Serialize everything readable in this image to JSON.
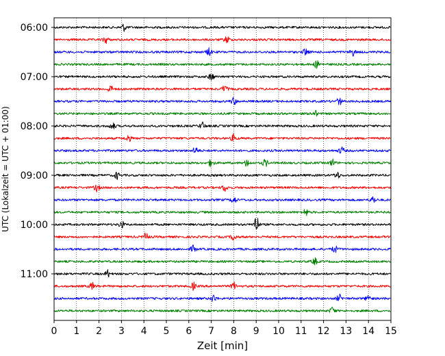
{
  "chart_data": {
    "type": "line",
    "xlabel": "Zeit  [min]",
    "ylabel": "UTC (Lokalzeit = UTC + 01:00)",
    "xlim": [
      0,
      15
    ],
    "x_ticks": [
      "0",
      "1",
      "2",
      "3",
      "4",
      "5",
      "6",
      "7",
      "8",
      "9",
      "10",
      "11",
      "12",
      "13",
      "14",
      "15"
    ],
    "y_ticks": [
      "06:00",
      "07:00",
      "08:00",
      "09:00",
      "10:00",
      "11:00"
    ],
    "grid": "vertical dotted",
    "colors": [
      "#000000",
      "#ff0000",
      "#0000ff",
      "#008000"
    ],
    "traces": [
      {
        "start": "06:00",
        "color": "#000000",
        "events": [
          3.1
        ]
      },
      {
        "start": "06:15",
        "color": "#ff0000",
        "events": [
          2.3,
          7.7
        ]
      },
      {
        "start": "06:30",
        "color": "#0000ff",
        "events": [
          6.9,
          11.2,
          13.3
        ]
      },
      {
        "start": "06:45",
        "color": "#008000",
        "events": [
          11.7
        ]
      },
      {
        "start": "07:00",
        "color": "#000000",
        "events": [
          7.0
        ]
      },
      {
        "start": "07:15",
        "color": "#ff0000",
        "events": [
          2.5,
          7.6
        ]
      },
      {
        "start": "07:30",
        "color": "#0000ff",
        "events": [
          8.0,
          12.7
        ]
      },
      {
        "start": "07:45",
        "color": "#008000",
        "events": [
          11.6
        ]
      },
      {
        "start": "08:00",
        "color": "#000000",
        "events": [
          2.6,
          6.6
        ]
      },
      {
        "start": "08:15",
        "color": "#ff0000",
        "events": [
          3.3,
          8.0
        ]
      },
      {
        "start": "08:30",
        "color": "#0000ff",
        "events": [
          6.3,
          12.8
        ]
      },
      {
        "start": "08:45",
        "color": "#008000",
        "events": [
          7.0,
          8.6,
          9.4,
          12.4
        ]
      },
      {
        "start": "09:00",
        "color": "#000000",
        "events": [
          2.8,
          12.6
        ]
      },
      {
        "start": "09:15",
        "color": "#ff0000",
        "events": [
          1.9,
          7.6
        ]
      },
      {
        "start": "09:30",
        "color": "#0000ff",
        "events": [
          8.0,
          14.2
        ]
      },
      {
        "start": "09:45",
        "color": "#008000",
        "events": [
          11.2
        ]
      },
      {
        "start": "10:00",
        "color": "#000000",
        "events": [
          3.0,
          9.0
        ]
      },
      {
        "start": "10:15",
        "color": "#ff0000",
        "events": [
          4.1,
          8.0
        ]
      },
      {
        "start": "10:30",
        "color": "#0000ff",
        "events": [
          6.2,
          12.5
        ]
      },
      {
        "start": "10:45",
        "color": "#008000",
        "events": [
          11.6
        ]
      },
      {
        "start": "11:00",
        "color": "#000000",
        "events": [
          2.4
        ]
      },
      {
        "start": "11:15",
        "color": "#ff0000",
        "events": [
          1.7,
          6.2,
          8.0
        ]
      },
      {
        "start": "11:30",
        "color": "#0000ff",
        "events": [
          7.1,
          12.7,
          14.0
        ]
      },
      {
        "start": "11:45",
        "color": "#008000",
        "events": [
          12.4
        ]
      }
    ]
  }
}
